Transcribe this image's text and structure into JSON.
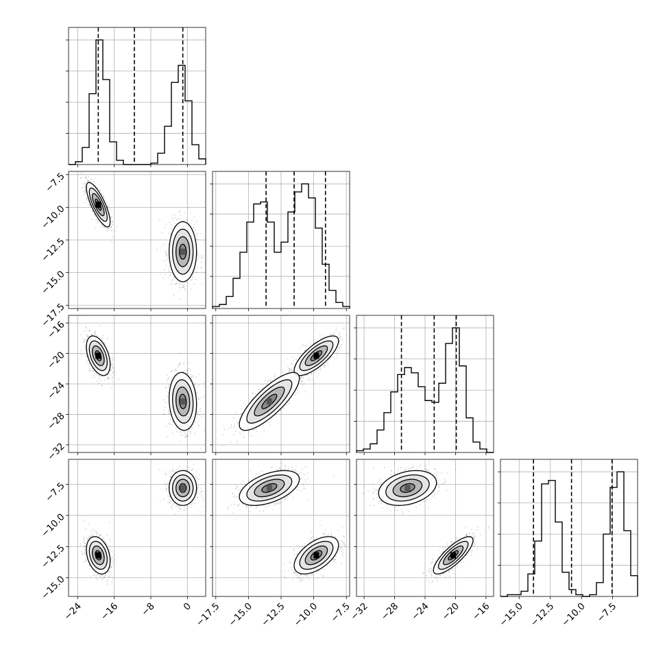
{
  "chart_data": {
    "type": "corner",
    "grid": true,
    "n_params": 4,
    "colors": {
      "line": "#000000",
      "grid": "#b0b0b0",
      "level_fills": [
        "#ffffff",
        "#e4e4e4",
        "#b8b8b8",
        "#8a8a8a",
        "#555555"
      ]
    },
    "params": [
      {
        "range": [
          -26,
          4
        ],
        "ticks": [
          -24,
          -16,
          -8,
          0
        ],
        "tick_labels": [
          "−24",
          "−16",
          "−8",
          "0"
        ],
        "mixture": [
          {
            "w": 0.52,
            "mu": -19.5,
            "sd": 1.3
          },
          {
            "w": 0.48,
            "mu": -1.0,
            "sd": 1.5
          }
        ],
        "hist": {
          "bins": 20,
          "counts": [
            0,
            2,
            12,
            50,
            88,
            60,
            16,
            3,
            0,
            0,
            0,
            0,
            1,
            8,
            27,
            58,
            70,
            45,
            14,
            4
          ]
        },
        "quantiles": [
          -19.5,
          -11.6,
          -1.0
        ]
      },
      {
        "range": [
          -17.75,
          -7.25
        ],
        "ticks": [
          -17.5,
          -15.0,
          -12.5,
          -10.0,
          -7.5
        ],
        "tick_labels": [
          "−17.5",
          "−15.0",
          "−12.5",
          "−10.0",
          "−7.5"
        ],
        "mixture": [
          {
            "w": 0.52,
            "mu": -9.8,
            "sd": 0.85
          },
          {
            "w": 0.48,
            "mu": -13.4,
            "sd": 1.15
          }
        ],
        "hist": {
          "bins": 20,
          "counts": [
            1,
            2,
            6,
            15,
            28,
            43,
            52,
            53,
            43,
            28,
            33,
            48,
            58,
            62,
            55,
            40,
            22,
            9,
            3,
            1
          ]
        },
        "quantiles": [
          -13.65,
          -11.5,
          -9.1
        ]
      },
      {
        "range": [
          -33,
          -15
        ],
        "ticks": [
          -32,
          -28,
          -24,
          -20,
          -16
        ],
        "tick_labels": [
          "−32",
          "−28",
          "−24",
          "−20",
          "−16"
        ],
        "mixture": [
          {
            "w": 0.52,
            "mu": -20.3,
            "sd": 1.3
          },
          {
            "w": 0.48,
            "mu": -26.3,
            "sd": 1.9
          }
        ],
        "hist": {
          "bins": 20,
          "counts": [
            1,
            2,
            5,
            13,
            23,
            35,
            45,
            49,
            46,
            38,
            30,
            29,
            40,
            63,
            72,
            50,
            20,
            6,
            2,
            0
          ]
        },
        "quantiles": [
          -27.1,
          -22.8,
          -19.9
        ]
      },
      {
        "range": [
          -16.5,
          -5.5
        ],
        "ticks": [
          -15.0,
          -12.5,
          -10.0,
          -7.5
        ],
        "tick_labels": [
          "−15.0",
          "−12.5",
          "−10.0",
          "−7.5"
        ],
        "mixture": [
          {
            "w": 0.52,
            "mu": -13.2,
            "sd": 0.75
          },
          {
            "w": 0.48,
            "mu": -7.8,
            "sd": 0.7
          }
        ],
        "hist": {
          "bins": 20,
          "counts": [
            0,
            1,
            1,
            3,
            13,
            32,
            65,
            67,
            43,
            14,
            4,
            1,
            0,
            1,
            8,
            36,
            63,
            72,
            38,
            12
          ]
        },
        "quantiles": [
          -13.85,
          -10.8,
          -7.55
        ]
      }
    ],
    "components": [
      {
        "mean": [
          -19.5,
          -9.8,
          -20.3,
          -13.2
        ],
        "sd": [
          1.3,
          0.85,
          1.3,
          0.75
        ],
        "corr": {
          "0-1": -0.78,
          "0-2": -0.45,
          "0-3": -0.3,
          "1-2": 0.75,
          "1-3": 0.55,
          "2-3": 0.8
        }
      },
      {
        "mean": [
          -1.0,
          -13.4,
          -26.3,
          -7.8
        ],
        "sd": [
          1.5,
          1.15,
          1.9,
          0.7
        ],
        "corr": {
          "0-1": 0.0,
          "0-2": -0.1,
          "0-3": 0.0,
          "1-2": 0.8,
          "1-3": 0.5,
          "2-3": 0.3
        }
      }
    ],
    "contour_sigma_levels": [
      0.5,
      1.0,
      1.5,
      2.0
    ]
  }
}
